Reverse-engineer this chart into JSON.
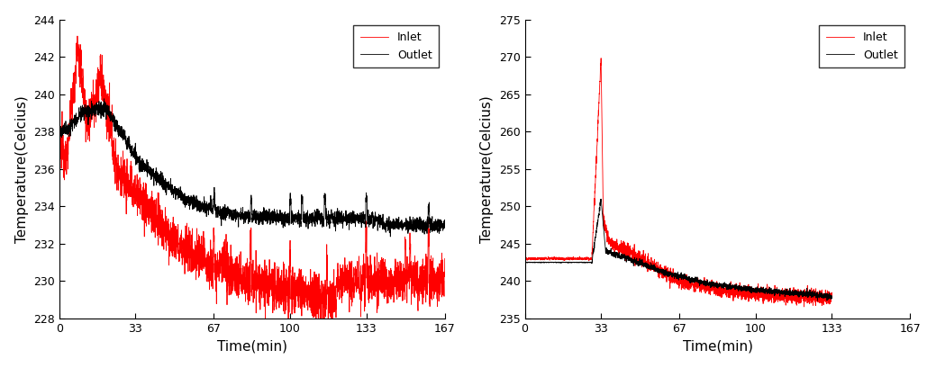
{
  "chart1": {
    "xlabel": "Time(min)",
    "ylabel": "Temperature(Celcius)",
    "xlim": [
      0,
      167
    ],
    "ylim": [
      228,
      244
    ],
    "yticks": [
      228,
      230,
      232,
      234,
      236,
      238,
      240,
      242,
      244
    ],
    "xticks": [
      0,
      33,
      67,
      100,
      133,
      167
    ],
    "inlet_color": "#ff0000",
    "outlet_color": "#000000",
    "inlet_label": "Inlet",
    "outlet_label": "Outlet"
  },
  "chart2": {
    "xlabel": "Time(min)",
    "ylabel": "Temperature(Celcius)",
    "xlim": [
      0,
      167
    ],
    "ylim": [
      235,
      275
    ],
    "yticks": [
      235,
      240,
      245,
      250,
      255,
      260,
      265,
      270,
      275
    ],
    "xticks": [
      0,
      33,
      67,
      100,
      133,
      167
    ],
    "inlet_color": "#ff0000",
    "outlet_color": "#000000",
    "inlet_label": "Inlet",
    "outlet_label": "Outlet"
  },
  "legend_fontsize": 9,
  "axis_fontsize": 11,
  "tick_fontsize": 9,
  "line_width": 0.6,
  "figsize": [
    10.39,
    4.09
  ],
  "dpi": 100
}
